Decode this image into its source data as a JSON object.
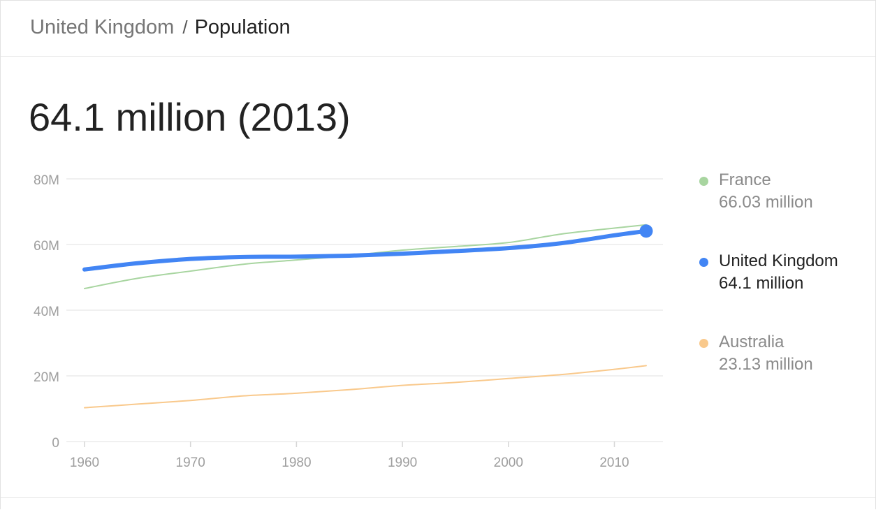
{
  "breadcrumb": {
    "parent": "United Kingdom",
    "separator": "/",
    "current": "Population"
  },
  "headline": "64.1 million (2013)",
  "colors": {
    "france": "#a8d5a0",
    "united_kingdom": "#4285f4",
    "australia": "#f9c98c",
    "grid": "#ececec",
    "tick": "#9e9e9e"
  },
  "legend": [
    {
      "name": "France",
      "value": "66.03 million",
      "color": "#a8d5a0",
      "selected": false
    },
    {
      "name": "United Kingdom",
      "value": "64.1 million",
      "color": "#4285f4",
      "selected": true
    },
    {
      "name": "Australia",
      "value": "23.13 million",
      "color": "#f9c98c",
      "selected": false
    }
  ],
  "chart_data": {
    "type": "line",
    "title": "",
    "xlabel": "",
    "ylabel": "",
    "xlim": [
      1960,
      2013
    ],
    "ylim": [
      0,
      80
    ],
    "y_unit": "million",
    "y_ticks": [
      0,
      20,
      40,
      60,
      80
    ],
    "y_tick_labels": [
      "0",
      "20M",
      "40M",
      "60M",
      "80M"
    ],
    "x_ticks": [
      1960,
      1970,
      1980,
      1990,
      2000,
      2010
    ],
    "x_tick_labels": [
      "1960",
      "1970",
      "1980",
      "1990",
      "2000",
      "2010"
    ],
    "grid": true,
    "legend_position": "right",
    "series": [
      {
        "name": "France",
        "x": [
          1960,
          1965,
          1970,
          1975,
          1980,
          1985,
          1990,
          1995,
          2000,
          2005,
          2010,
          2013
        ],
        "values": [
          46.6,
          49.7,
          51.9,
          54.0,
          55.3,
          56.6,
          58.3,
          59.4,
          60.6,
          63.2,
          65.0,
          66.0
        ]
      },
      {
        "name": "United Kingdom",
        "x": [
          1960,
          1965,
          1970,
          1975,
          1980,
          1985,
          1990,
          1995,
          2000,
          2005,
          2010,
          2013
        ],
        "values": [
          52.4,
          54.3,
          55.6,
          56.2,
          56.3,
          56.6,
          57.2,
          58.0,
          58.9,
          60.4,
          62.8,
          64.1
        ]
      },
      {
        "name": "Australia",
        "x": [
          1960,
          1965,
          1970,
          1975,
          1980,
          1985,
          1990,
          1995,
          2000,
          2005,
          2010,
          2013
        ],
        "values": [
          10.3,
          11.4,
          12.5,
          13.9,
          14.7,
          15.8,
          17.1,
          18.0,
          19.2,
          20.4,
          22.0,
          23.1
        ]
      }
    ],
    "highlighted_point": {
      "series": "United Kingdom",
      "x": 2013,
      "y": 64.1
    }
  }
}
